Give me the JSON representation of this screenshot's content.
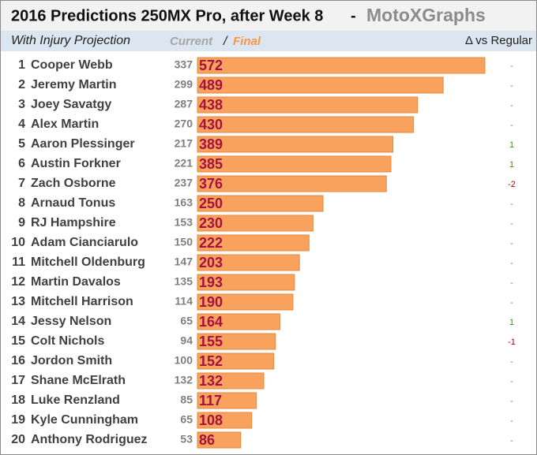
{
  "chart_data": {
    "type": "bar",
    "title": "2016 Predictions 250MX Pro, after Week 8",
    "title_separator": "-",
    "brand": "MotoXGraphs",
    "subtitle": "With Injury Projection",
    "current_header": "Current",
    "header_slash": "/",
    "final_header": "Final",
    "delta_header": "Δ vs Regular",
    "ranks": [
      1,
      2,
      3,
      4,
      5,
      6,
      7,
      8,
      9,
      10,
      11,
      12,
      13,
      14,
      15,
      16,
      17,
      18,
      19,
      20
    ],
    "categories": [
      "Cooper Webb",
      "Jeremy Martin",
      "Joey Savatgy",
      "Alex Martin",
      "Aaron Plessinger",
      "Austin Forkner",
      "Zach Osborne",
      "Arnaud Tonus",
      "RJ Hampshire",
      "Adam Cianciarulo",
      "Mitchell Oldenburg",
      "Martin Davalos",
      "Mitchell Harrison",
      "Jessy Nelson",
      "Colt Nichols",
      "Jordon Smith",
      "Shane McElrath",
      "Luke Renzland",
      "Kyle Cunningham",
      "Anthony Rodriguez"
    ],
    "series": [
      {
        "name": "Current",
        "color": "#7f7f7f",
        "values": [
          337,
          299,
          287,
          270,
          217,
          221,
          237,
          163,
          153,
          150,
          147,
          135,
          114,
          65,
          94,
          100,
          132,
          85,
          65,
          53
        ]
      },
      {
        "name": "Final",
        "color": "#f9a25e",
        "values": [
          572,
          489,
          438,
          430,
          389,
          385,
          376,
          250,
          230,
          222,
          203,
          193,
          190,
          164,
          155,
          152,
          132,
          117,
          108,
          86
        ]
      }
    ],
    "delta": [
      "-",
      "-",
      "-",
      "-",
      "1",
      "1",
      "-2",
      "-",
      "-",
      "-",
      "-",
      "-",
      "-",
      "1",
      "-1",
      "-",
      "-",
      "-",
      "-",
      "-"
    ]
  }
}
